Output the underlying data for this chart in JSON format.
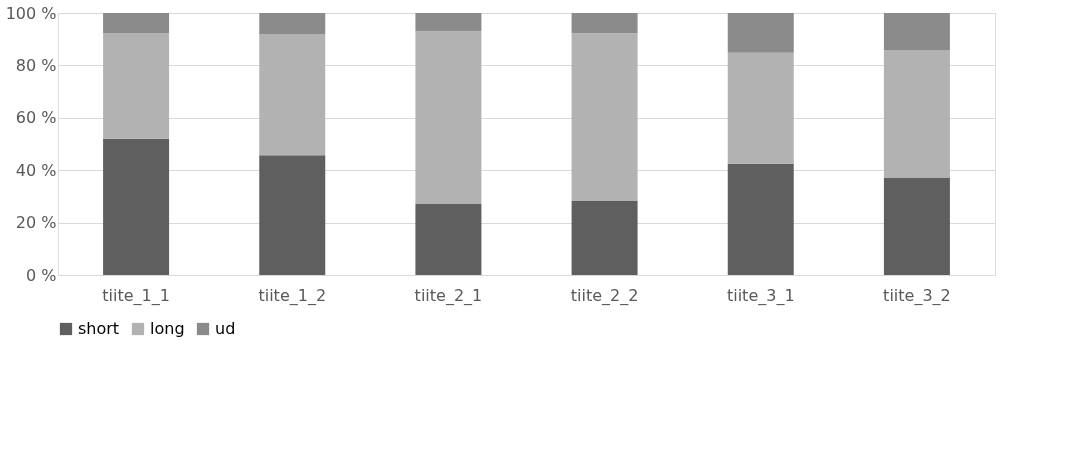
{
  "chart_data": {
    "type": "bar",
    "stacked": true,
    "categories": [
      "tiite_1_1",
      "tiite_1_2",
      "tiite_2_1",
      "tiite_2_2",
      "tiite_3_1",
      "tiite_3_2"
    ],
    "series": [
      {
        "name": "short",
        "color": "#5f5f5f",
        "values": [
          52.0,
          45.7,
          27.3,
          28.2,
          42.5,
          37.2
        ]
      },
      {
        "name": "long",
        "color": "#b2b2b2",
        "values": [
          40.4,
          46.3,
          65.7,
          64.1,
          42.3,
          48.7
        ]
      },
      {
        "name": "ud",
        "color": "#8b8b8b",
        "values": [
          7.6,
          8.0,
          7.0,
          7.7,
          15.2,
          14.1
        ]
      }
    ],
    "ylim": [
      0,
      100
    ],
    "yticks": [
      {
        "value": 0,
        "label": "0 %"
      },
      {
        "value": 20,
        "label": "20 %"
      },
      {
        "value": 40,
        "label": "40 %"
      },
      {
        "value": 60,
        "label": "60 %"
      },
      {
        "value": 80,
        "label": "80 %"
      },
      {
        "value": 100,
        "label": "100 %"
      }
    ],
    "grid": "y",
    "legend": "bottom"
  }
}
